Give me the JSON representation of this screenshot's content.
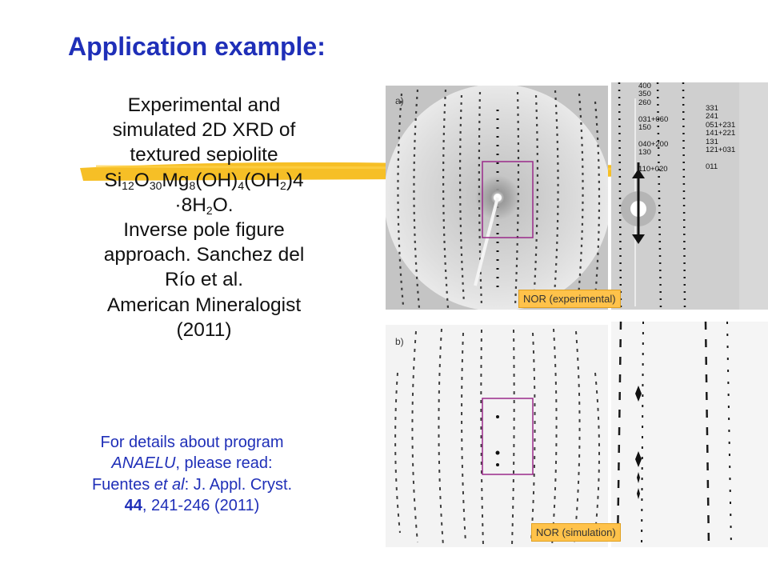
{
  "slide": {
    "title": "Application example:",
    "main": {
      "line1": "Experimental  and",
      "line2": "simulated 2D XRD of",
      "line3": "textured  sepiolite",
      "formula": {
        "si": "Si",
        "si_n": "12",
        "o": "O",
        "o_n": "30",
        "mg": "Mg",
        "mg_n": "8",
        "oh": "(OH)",
        "oh_n": "4",
        "oh2": "(OH",
        "oh2_n": "2",
        "tail": ")4"
      },
      "hydrate": {
        "pre": "·8H",
        "n": "2",
        "post": "O."
      },
      "line6": "Inverse pole figure",
      "line7": "approach.  Sanchez del",
      "line8": "Río et al.",
      "line9": "American Mineralogist",
      "line10": "(2011)"
    },
    "reference": {
      "line1": "For details about program",
      "program": "ANAELU",
      "line2_rest": ", please read:",
      "author": "Fuentes ",
      "etal": "et al",
      "journal": ": J. Appl. Cryst.",
      "volume": "44",
      "pages": ", 241-246 (2011)"
    }
  },
  "figure": {
    "panel_a": {
      "letter": "a)",
      "label": "NOR (experimental)",
      "hkl_left": [
        "400",
        "350",
        "260",
        "",
        "031+060",
        "150",
        "",
        "040+200",
        "130",
        "",
        "110+020"
      ],
      "hkl_right": [
        "331",
        "241",
        "051+231",
        "141+221",
        "131",
        "121+031",
        "",
        "011"
      ]
    },
    "panel_b": {
      "letter": "b)",
      "label": "NOR (simulation)"
    },
    "colors": {
      "title": "#1f2fb8",
      "label_bg": "#ffc24a",
      "box": "#9a2a8a",
      "highlight": "#f4b400"
    }
  }
}
